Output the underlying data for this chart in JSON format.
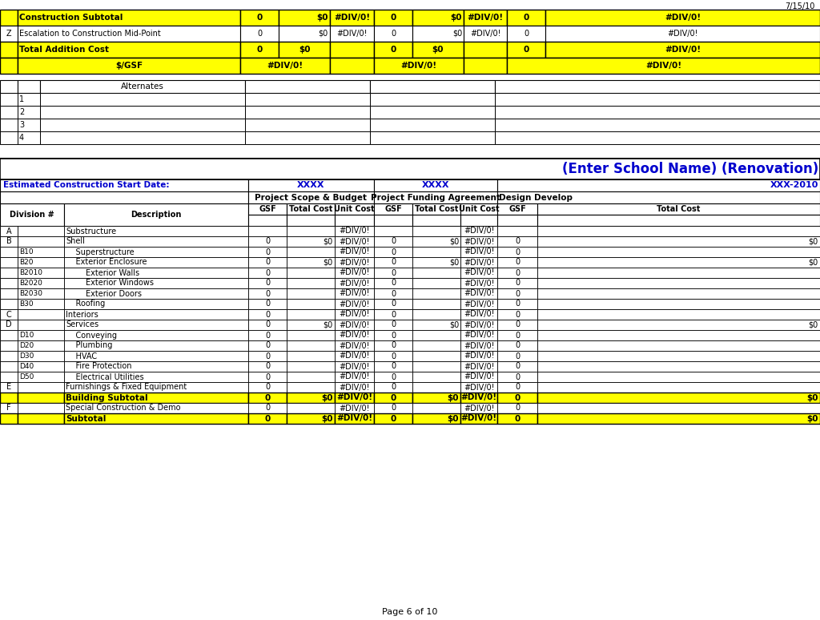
{
  "date_label": "7/15/10",
  "page_label": "Page 6 of 10",
  "title": "(Enter School Name) (Renovation)",
  "bg_color": "#FFFFFF",
  "yellow": "#FFFF00",
  "black": "#000000",
  "blue_text": "#0000CD",
  "top_section": {
    "rows": [
      {
        "col0": "",
        "col1": "Construction Subtotal",
        "col2": "0",
        "col3": "$0",
        "col4": "#DIV/0!",
        "col5": "0",
        "col6": "$0",
        "col7": "#DIV/0!",
        "col8": "0",
        "col9": "#DIV/0!",
        "bold": true,
        "yellow": true
      },
      {
        "col0": "Z",
        "col1": "Escalation to Construction Mid-Point",
        "col2": "0",
        "col3": "$0",
        "col4": "#DIV/0!",
        "col5": "0",
        "col6": "$0",
        "col7": "#DIV/0!",
        "col8": "0",
        "col9": "#DIV/0!",
        "bold": false,
        "yellow": false
      },
      {
        "col0": "",
        "col1": "Total Addition Cost",
        "col2": "0",
        "col3": "$0",
        "col4": "",
        "col5": "0",
        "col6": "$0",
        "col7": "",
        "col8": "0",
        "col9": "#DIV/0!",
        "bold": true,
        "yellow": true
      },
      {
        "col0": "",
        "col1": "$/GSF",
        "col2": "",
        "col3": "#DIV/0!",
        "col4": "",
        "col5": "",
        "col6": "#DIV/0!",
        "col7": "",
        "col8": "",
        "col9": "#DIV/0!",
        "bold": true,
        "yellow": true
      }
    ]
  },
  "alt_section": {
    "header": "Alternates",
    "rows": [
      "1",
      "2",
      "3",
      "4"
    ]
  },
  "main_section": {
    "est_label": "Estimated Construction Start Date:",
    "xxxx1": "XXXX",
    "xxxx2": "XXXX",
    "xxxx3": "XXX-2010",
    "col_group1": "Project Scope & Budget",
    "col_group2": "Project Funding Agreement",
    "col_group3": "Design Develop",
    "col_headers": [
      "GSF",
      "Total Cost",
      "Unit Cost",
      "GSF",
      "Total Cost",
      "Unit Cost",
      "GSF",
      "Total Cost"
    ],
    "div_header": "Division #",
    "desc_header": "Description",
    "rows": [
      {
        "div": "A",
        "sub": "",
        "desc": "Substructure",
        "gsf1": "",
        "tc1": "",
        "uc1": "#DIV/0!",
        "gsf2": "",
        "tc2": "",
        "uc2": "#DIV/0!",
        "gsf3": "",
        "tc3": "",
        "bold": false,
        "yellow": false
      },
      {
        "div": "B",
        "sub": "",
        "desc": "Shell",
        "gsf1": "0",
        "tc1": "$0",
        "uc1": "#DIV/0!",
        "gsf2": "0",
        "tc2": "$0",
        "uc2": "#DIV/0!",
        "gsf3": "0",
        "tc3": "$0",
        "bold": false,
        "yellow": false
      },
      {
        "div": "",
        "sub": "B10",
        "desc": "    Superstructure",
        "gsf1": "0",
        "tc1": "",
        "uc1": "#DIV/0!",
        "gsf2": "0",
        "tc2": "",
        "uc2": "#DIV/0!",
        "gsf3": "0",
        "tc3": "",
        "bold": false,
        "yellow": false
      },
      {
        "div": "",
        "sub": "B20",
        "desc": "    Exterior Enclosure",
        "gsf1": "0",
        "tc1": "$0",
        "uc1": "#DIV/0!",
        "gsf2": "0",
        "tc2": "$0",
        "uc2": "#DIV/0!",
        "gsf3": "0",
        "tc3": "$0",
        "bold": false,
        "yellow": false
      },
      {
        "div": "",
        "sub": "B2010",
        "desc": "        Exterior Walls",
        "gsf1": "0",
        "tc1": "",
        "uc1": "#DIV/0!",
        "gsf2": "0",
        "tc2": "",
        "uc2": "#DIV/0!",
        "gsf3": "0",
        "tc3": "",
        "bold": false,
        "yellow": false
      },
      {
        "div": "",
        "sub": "B2020",
        "desc": "        Exterior Windows",
        "gsf1": "0",
        "tc1": "",
        "uc1": "#DIV/0!",
        "gsf2": "0",
        "tc2": "",
        "uc2": "#DIV/0!",
        "gsf3": "0",
        "tc3": "",
        "bold": false,
        "yellow": false
      },
      {
        "div": "",
        "sub": "B2030",
        "desc": "        Exterior Doors",
        "gsf1": "0",
        "tc1": "",
        "uc1": "#DIV/0!",
        "gsf2": "0",
        "tc2": "",
        "uc2": "#DIV/0!",
        "gsf3": "0",
        "tc3": "",
        "bold": false,
        "yellow": false
      },
      {
        "div": "",
        "sub": "B30",
        "desc": "    Roofing",
        "gsf1": "0",
        "tc1": "",
        "uc1": "#DIV/0!",
        "gsf2": "0",
        "tc2": "",
        "uc2": "#DIV/0!",
        "gsf3": "0",
        "tc3": "",
        "bold": false,
        "yellow": false
      },
      {
        "div": "C",
        "sub": "",
        "desc": "Interiors",
        "gsf1": "0",
        "tc1": "",
        "uc1": "#DIV/0!",
        "gsf2": "0",
        "tc2": "",
        "uc2": "#DIV/0!",
        "gsf3": "0",
        "tc3": "",
        "bold": false,
        "yellow": false
      },
      {
        "div": "D",
        "sub": "",
        "desc": "Services",
        "gsf1": "0",
        "tc1": "$0",
        "uc1": "#DIV/0!",
        "gsf2": "0",
        "tc2": "$0",
        "uc2": "#DIV/0!",
        "gsf3": "0",
        "tc3": "$0",
        "bold": false,
        "yellow": false
      },
      {
        "div": "",
        "sub": "D10",
        "desc": "    Conveying",
        "gsf1": "0",
        "tc1": "",
        "uc1": "#DIV/0!",
        "gsf2": "0",
        "tc2": "",
        "uc2": "#DIV/0!",
        "gsf3": "0",
        "tc3": "",
        "bold": false,
        "yellow": false
      },
      {
        "div": "",
        "sub": "D20",
        "desc": "    Plumbing",
        "gsf1": "0",
        "tc1": "",
        "uc1": "#DIV/0!",
        "gsf2": "0",
        "tc2": "",
        "uc2": "#DIV/0!",
        "gsf3": "0",
        "tc3": "",
        "bold": false,
        "yellow": false
      },
      {
        "div": "",
        "sub": "D30",
        "desc": "    HVAC",
        "gsf1": "0",
        "tc1": "",
        "uc1": "#DIV/0!",
        "gsf2": "0",
        "tc2": "",
        "uc2": "#DIV/0!",
        "gsf3": "0",
        "tc3": "",
        "bold": false,
        "yellow": false
      },
      {
        "div": "",
        "sub": "D40",
        "desc": "    Fire Protection",
        "gsf1": "0",
        "tc1": "",
        "uc1": "#DIV/0!",
        "gsf2": "0",
        "tc2": "",
        "uc2": "#DIV/0!",
        "gsf3": "0",
        "tc3": "",
        "bold": false,
        "yellow": false
      },
      {
        "div": "",
        "sub": "D50",
        "desc": "    Electrical Utilities",
        "gsf1": "0",
        "tc1": "",
        "uc1": "#DIV/0!",
        "gsf2": "0",
        "tc2": "",
        "uc2": "#DIV/0!",
        "gsf3": "0",
        "tc3": "",
        "bold": false,
        "yellow": false
      },
      {
        "div": "E",
        "sub": "",
        "desc": "Furnishings & Fixed Equipment",
        "gsf1": "0",
        "tc1": "",
        "uc1": "#DIV/0!",
        "gsf2": "0",
        "tc2": "",
        "uc2": "#DIV/0!",
        "gsf3": "0",
        "tc3": "",
        "bold": false,
        "yellow": false
      },
      {
        "div": "",
        "sub": "",
        "desc": "Building Subtotal",
        "gsf1": "0",
        "tc1": "$0",
        "uc1": "#DIV/0!",
        "gsf2": "0",
        "tc2": "$0",
        "uc2": "#DIV/0!",
        "gsf3": "0",
        "tc3": "$0",
        "bold": true,
        "yellow": true
      },
      {
        "div": "F",
        "sub": "",
        "desc": "Special Construction & Demo",
        "gsf1": "0",
        "tc1": "",
        "uc1": "#DIV/0!",
        "gsf2": "0",
        "tc2": "",
        "uc2": "#DIV/0!",
        "gsf3": "0",
        "tc3": "",
        "bold": false,
        "yellow": false
      },
      {
        "div": "",
        "sub": "",
        "desc": "Subtotal",
        "gsf1": "0",
        "tc1": "$0",
        "uc1": "#DIV/0!",
        "gsf2": "0",
        "tc2": "$0",
        "uc2": "#DIV/0!",
        "gsf3": "0",
        "tc3": "$0",
        "bold": true,
        "yellow": true
      }
    ]
  }
}
